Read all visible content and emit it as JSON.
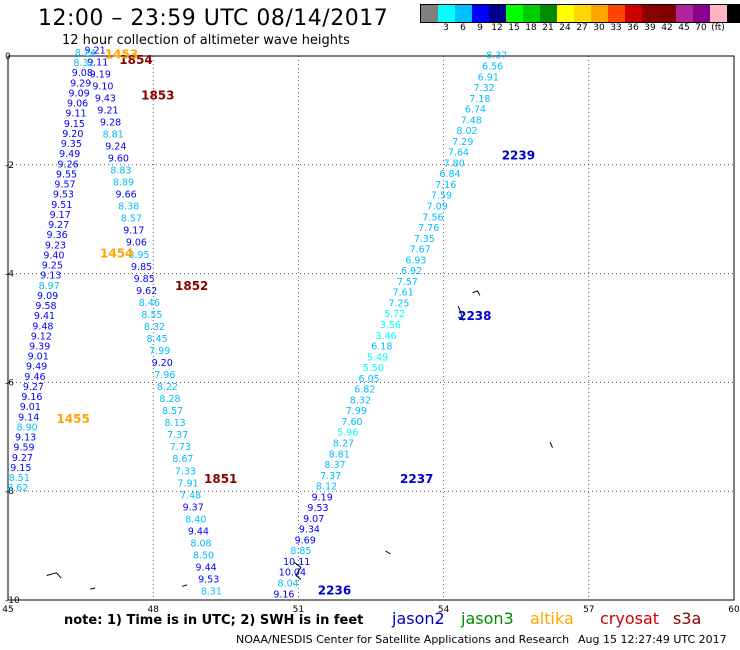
{
  "header": {
    "title": "12:00 – 23:59 UTC 08/14/2017",
    "subtitle": "12 hour collection of altimeter wave heights"
  },
  "colorbar": {
    "colors": [
      "#808080",
      "#00ffff",
      "#00bfff",
      "#0000ff",
      "#00008b",
      "#00ff00",
      "#00cd00",
      "#008b00",
      "#ffff00",
      "#ffd700",
      "#ffa500",
      "#ff4500",
      "#cd0000",
      "#8b0000",
      "#800000",
      "#b22298",
      "#8b008b",
      "#ffb6c1",
      "#000000"
    ],
    "labels": [
      "3",
      "6",
      "9",
      "12",
      "15",
      "18",
      "21",
      "24",
      "27",
      "30",
      "33",
      "36",
      "39",
      "42",
      "45",
      "70",
      "(ft)"
    ]
  },
  "note": "note: 1) Time is in UTC; 2) SWH is in feet",
  "satellites": [
    {
      "name": "jason2",
      "color": "#0000cd"
    },
    {
      "name": "jason3",
      "color": "#008b00"
    },
    {
      "name": "altika",
      "color": "#ffa500"
    },
    {
      "name": "cryosat",
      "color": "#cd0000"
    },
    {
      "name": "s3a",
      "color": "#8b0000"
    }
  ],
  "footer": {
    "credit": "NOAA/NESDIS Center for Satellite Applications and Research",
    "timestamp": "Aug 15 12:27:49 UTC 2017"
  },
  "chart_data": {
    "type": "scatter",
    "title": "12:00 – 23:59 UTC 08/14/2017",
    "subtitle": "12 hour collection of altimeter wave heights",
    "xlabel": "",
    "ylabel": "",
    "xlim": [
      45,
      60
    ],
    "ylim": [
      -10,
      0
    ],
    "xticks": [
      45,
      48,
      51,
      54,
      57,
      60
    ],
    "yticks": [
      0,
      -2,
      -4,
      -6,
      -8,
      -10
    ],
    "grid": "dotted",
    "units": "ft",
    "tracks": [
      {
        "satellite": "jason2",
        "values": [
          8.37,
          6.56,
          6.91,
          7.32,
          7.18,
          6.74,
          7.48,
          8.02,
          7.29,
          7.64,
          7.8,
          6.84,
          7.16,
          7.59,
          7.09,
          7.56,
          7.76,
          7.35,
          7.67,
          6.93,
          6.92,
          7.57,
          7.61,
          7.25,
          5.72,
          3.56,
          3.46,
          6.18,
          5.49,
          5.5,
          6.05,
          6.82,
          8.32,
          7.99,
          7.6,
          5.96,
          8.27,
          8.81,
          8.37,
          7.37,
          8.12,
          9.19,
          9.53,
          9.07,
          9.34,
          9.69,
          8.85,
          10.11,
          10.04,
          8.04,
          9.16
        ],
        "start": [
          55.1,
          -0.05
        ],
        "end": [
          50.7,
          -9.95
        ],
        "time_labels": [
          {
            "text": "2239",
            "lon": 55.2,
            "lat": -1.9
          },
          {
            "text": "2238",
            "lon": 54.3,
            "lat": -4.85
          },
          {
            "text": "2237",
            "lon": 53.1,
            "lat": -7.85
          },
          {
            "text": "2236",
            "lon": 51.4,
            "lat": -9.9
          }
        ]
      },
      {
        "satellite": "cryosat",
        "values": [
          9.21,
          9.11,
          9.19,
          9.1,
          9.43,
          9.21,
          9.28,
          8.81,
          9.24,
          9.6,
          8.83,
          8.89,
          9.66,
          8.38,
          8.57,
          9.17,
          9.06,
          8.95,
          9.85,
          9.85,
          9.62,
          8.46,
          8.55,
          8.32,
          8.45,
          7.99,
          9.2,
          7.96,
          8.22,
          8.28,
          8.57,
          8.13,
          7.37,
          7.73,
          8.67,
          7.33,
          7.91,
          7.48,
          9.37,
          8.4,
          9.44,
          8.08,
          8.5,
          9.44,
          9.53,
          8.31
        ],
        "start": [
          46.8,
          0.05
        ],
        "end": [
          49.2,
          -9.9
        ],
        "time_labels": [
          {
            "text": "1854",
            "lon": 47.3,
            "lat": -0.15
          },
          {
            "text": "1853",
            "lon": 47.75,
            "lat": -0.8
          },
          {
            "text": "1852",
            "lon": 48.45,
            "lat": -4.3
          },
          {
            "text": "1851",
            "lon": 49.05,
            "lat": -7.85
          }
        ]
      },
      {
        "satellite": "altika",
        "values": [
          8.24,
          8.32,
          9.08,
          9.29,
          9.09,
          9.06,
          9.11,
          9.15,
          9.2,
          9.35,
          9.49,
          9.26,
          9.55,
          9.57,
          9.53,
          9.51,
          9.17,
          9.27,
          9.36,
          9.23,
          9.4,
          9.25,
          9.13,
          8.97,
          9.09,
          9.58,
          9.41,
          9.48,
          9.12,
          9.39,
          9.01,
          9.49,
          9.46,
          9.27,
          9.16,
          9.01,
          9.14,
          8.9,
          9.13,
          9.59,
          9.27,
          9.15,
          8.51,
          8.62
        ],
        "start": [
          46.6,
          0.0
        ],
        "end": [
          45.2,
          -8.0
        ],
        "time_labels": [
          {
            "text": "1453",
            "lon": 47.0,
            "lat": -0.05
          },
          {
            "text": "1454",
            "lon": 46.9,
            "lat": -3.7
          },
          {
            "text": "1455",
            "lon": 46.0,
            "lat": -6.75
          }
        ]
      }
    ]
  }
}
